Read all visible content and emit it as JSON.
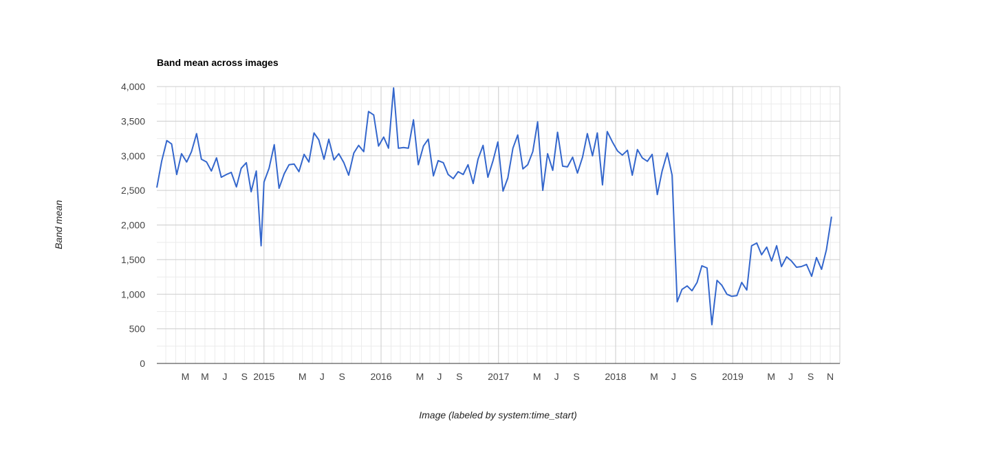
{
  "chart_data": {
    "type": "line",
    "title": "Band mean across images",
    "xlabel": "Image (labeled by system:time_start)",
    "ylabel": "Band mean",
    "ylim": [
      0,
      4000
    ],
    "yticks": [
      0,
      500,
      1000,
      1500,
      2000,
      2500,
      3000,
      3500,
      4000
    ],
    "ytick_labels": [
      "0",
      "500",
      "1,000",
      "1,500",
      "2,000",
      "2,500",
      "3,000",
      "3,500",
      "4,000"
    ],
    "xlim": [
      "2014-02-01",
      "2019-12-01"
    ],
    "xticks": [
      {
        "date": "2014-05-01",
        "label": "M"
      },
      {
        "date": "2014-07-01",
        "label": "M"
      },
      {
        "date": "2014-09-01",
        "label": "J"
      },
      {
        "date": "2014-11-01",
        "label": "S"
      },
      {
        "date": "2015-01-01",
        "label": "2015"
      },
      {
        "date": "2015-05-01",
        "label": "M"
      },
      {
        "date": "2015-07-01",
        "label": "J"
      },
      {
        "date": "2015-09-01",
        "label": "S"
      },
      {
        "date": "2016-01-01",
        "label": "2016"
      },
      {
        "date": "2016-05-01",
        "label": "M"
      },
      {
        "date": "2016-07-01",
        "label": "J"
      },
      {
        "date": "2016-09-01",
        "label": "S"
      },
      {
        "date": "2017-01-01",
        "label": "2017"
      },
      {
        "date": "2017-05-01",
        "label": "M"
      },
      {
        "date": "2017-07-01",
        "label": "J"
      },
      {
        "date": "2017-09-01",
        "label": "S"
      },
      {
        "date": "2018-01-01",
        "label": "2018"
      },
      {
        "date": "2018-05-01",
        "label": "M"
      },
      {
        "date": "2018-07-01",
        "label": "J"
      },
      {
        "date": "2018-09-01",
        "label": "S"
      },
      {
        "date": "2019-01-01",
        "label": "2019"
      },
      {
        "date": "2019-05-01",
        "label": "M"
      },
      {
        "date": "2019-07-01",
        "label": "J"
      },
      {
        "date": "2019-09-01",
        "label": "S"
      },
      {
        "date": "2019-11-01",
        "label": "N"
      }
    ],
    "major_grid_dates": [
      "2015-01-01",
      "2016-01-01",
      "2017-01-01",
      "2018-01-01",
      "2019-01-01"
    ],
    "grid": true,
    "legend": "none",
    "series": [
      {
        "color": "#3366cc",
        "points": [
          [
            "2014-02-01",
            2540
          ],
          [
            "2014-02-16",
            2920
          ],
          [
            "2014-03-04",
            3220
          ],
          [
            "2014-03-19",
            3170
          ],
          [
            "2014-04-04",
            2730
          ],
          [
            "2014-04-19",
            3030
          ],
          [
            "2014-05-05",
            2910
          ],
          [
            "2014-05-20",
            3060
          ],
          [
            "2014-06-05",
            3320
          ],
          [
            "2014-06-20",
            2950
          ],
          [
            "2014-07-06",
            2910
          ],
          [
            "2014-07-21",
            2780
          ],
          [
            "2014-08-06",
            2970
          ],
          [
            "2014-08-21",
            2690
          ],
          [
            "2014-09-06",
            2730
          ],
          [
            "2014-09-21",
            2760
          ],
          [
            "2014-10-07",
            2550
          ],
          [
            "2014-10-22",
            2820
          ],
          [
            "2014-11-07",
            2900
          ],
          [
            "2014-11-22",
            2480
          ],
          [
            "2014-12-08",
            2780
          ],
          [
            "2014-12-23",
            1700
          ],
          [
            "2015-01-01",
            2620
          ],
          [
            "2015-01-17",
            2820
          ],
          [
            "2015-02-02",
            3160
          ],
          [
            "2015-02-17",
            2530
          ],
          [
            "2015-03-05",
            2740
          ],
          [
            "2015-03-20",
            2870
          ],
          [
            "2015-04-05",
            2880
          ],
          [
            "2015-04-20",
            2770
          ],
          [
            "2015-05-06",
            3020
          ],
          [
            "2015-05-21",
            2910
          ],
          [
            "2015-06-06",
            3330
          ],
          [
            "2015-06-21",
            3230
          ],
          [
            "2015-07-07",
            2950
          ],
          [
            "2015-07-22",
            3240
          ],
          [
            "2015-08-07",
            2940
          ],
          [
            "2015-08-22",
            3030
          ],
          [
            "2015-09-07",
            2900
          ],
          [
            "2015-09-22",
            2720
          ],
          [
            "2015-10-08",
            3040
          ],
          [
            "2015-10-23",
            3150
          ],
          [
            "2015-11-08",
            3060
          ],
          [
            "2015-11-23",
            3640
          ],
          [
            "2015-12-09",
            3590
          ],
          [
            "2015-12-24",
            3140
          ],
          [
            "2016-01-09",
            3270
          ],
          [
            "2016-01-24",
            3110
          ],
          [
            "2016-02-09",
            3980
          ],
          [
            "2016-02-24",
            3110
          ],
          [
            "2016-03-11",
            3120
          ],
          [
            "2016-03-26",
            3110
          ],
          [
            "2016-04-11",
            3520
          ],
          [
            "2016-04-26",
            2870
          ],
          [
            "2016-05-12",
            3140
          ],
          [
            "2016-05-27",
            3240
          ],
          [
            "2016-06-12",
            2710
          ],
          [
            "2016-06-27",
            2930
          ],
          [
            "2016-07-13",
            2900
          ],
          [
            "2016-07-28",
            2730
          ],
          [
            "2016-08-13",
            2670
          ],
          [
            "2016-08-28",
            2770
          ],
          [
            "2016-09-13",
            2730
          ],
          [
            "2016-09-28",
            2870
          ],
          [
            "2016-10-14",
            2600
          ],
          [
            "2016-10-29",
            2950
          ],
          [
            "2016-11-14",
            3150
          ],
          [
            "2016-11-29",
            2690
          ],
          [
            "2016-12-15",
            2930
          ],
          [
            "2016-12-30",
            3200
          ],
          [
            "2017-01-15",
            2490
          ],
          [
            "2017-01-30",
            2680
          ],
          [
            "2017-02-15",
            3110
          ],
          [
            "2017-03-02",
            3300
          ],
          [
            "2017-03-18",
            2810
          ],
          [
            "2017-04-02",
            2870
          ],
          [
            "2017-04-18",
            3060
          ],
          [
            "2017-05-03",
            3490
          ],
          [
            "2017-05-19",
            2500
          ],
          [
            "2017-06-03",
            3030
          ],
          [
            "2017-06-19",
            2790
          ],
          [
            "2017-07-04",
            3340
          ],
          [
            "2017-07-20",
            2850
          ],
          [
            "2017-08-04",
            2840
          ],
          [
            "2017-08-20",
            2980
          ],
          [
            "2017-09-04",
            2750
          ],
          [
            "2017-09-20",
            2980
          ],
          [
            "2017-10-05",
            3320
          ],
          [
            "2017-10-21",
            3000
          ],
          [
            "2017-11-05",
            3330
          ],
          [
            "2017-11-21",
            2580
          ],
          [
            "2017-12-06",
            3350
          ],
          [
            "2017-12-22",
            3200
          ],
          [
            "2018-01-07",
            3070
          ],
          [
            "2018-01-22",
            3010
          ],
          [
            "2018-02-07",
            3080
          ],
          [
            "2018-02-22",
            2720
          ],
          [
            "2018-03-10",
            3090
          ],
          [
            "2018-03-25",
            2970
          ],
          [
            "2018-04-10",
            2920
          ],
          [
            "2018-04-25",
            3020
          ],
          [
            "2018-05-11",
            2440
          ],
          [
            "2018-05-26",
            2780
          ],
          [
            "2018-06-11",
            3040
          ],
          [
            "2018-06-26",
            2720
          ],
          [
            "2018-07-12",
            890
          ],
          [
            "2018-07-27",
            1070
          ],
          [
            "2018-08-12",
            1120
          ],
          [
            "2018-08-27",
            1050
          ],
          [
            "2018-09-12",
            1170
          ],
          [
            "2018-09-27",
            1410
          ],
          [
            "2018-10-13",
            1380
          ],
          [
            "2018-10-28",
            560
          ],
          [
            "2018-11-13",
            1200
          ],
          [
            "2018-11-28",
            1130
          ],
          [
            "2018-12-14",
            1000
          ],
          [
            "2018-12-29",
            970
          ],
          [
            "2019-01-14",
            980
          ],
          [
            "2019-01-29",
            1170
          ],
          [
            "2019-02-14",
            1060
          ],
          [
            "2019-03-01",
            1700
          ],
          [
            "2019-03-17",
            1740
          ],
          [
            "2019-04-01",
            1570
          ],
          [
            "2019-04-17",
            1680
          ],
          [
            "2019-05-02",
            1480
          ],
          [
            "2019-05-18",
            1700
          ],
          [
            "2019-06-02",
            1400
          ],
          [
            "2019-06-18",
            1540
          ],
          [
            "2019-07-03",
            1480
          ],
          [
            "2019-07-19",
            1390
          ],
          [
            "2019-08-03",
            1400
          ],
          [
            "2019-08-19",
            1430
          ],
          [
            "2019-09-04",
            1260
          ],
          [
            "2019-09-19",
            1530
          ],
          [
            "2019-10-05",
            1360
          ],
          [
            "2019-10-20",
            1640
          ],
          [
            "2019-11-05",
            2120
          ]
        ]
      }
    ]
  }
}
